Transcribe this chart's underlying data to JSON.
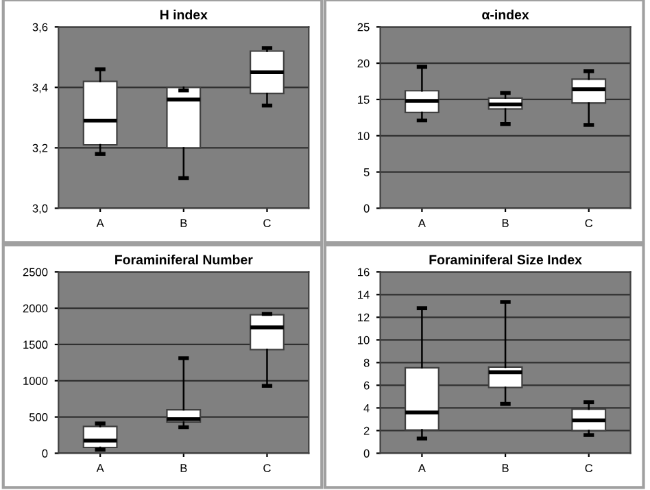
{
  "chart_data": [
    {
      "type": "box",
      "title": "H index",
      "categories": [
        "A",
        "B",
        "C"
      ],
      "ylim": [
        3.0,
        3.6
      ],
      "yticks": [
        {
          "value": 3.0,
          "label": "3,0"
        },
        {
          "value": 3.2,
          "label": "3,2"
        },
        {
          "value": 3.4,
          "label": "3,4"
        },
        {
          "value": 3.6,
          "label": "3,6"
        }
      ],
      "grid": "y",
      "boxes": [
        {
          "low": 3.18,
          "q1": 3.21,
          "median": 3.29,
          "q3": 3.42,
          "high": 3.46
        },
        {
          "low": 3.1,
          "q1": 3.2,
          "median": 3.36,
          "q3": 3.4,
          "high": 3.39
        },
        {
          "low": 3.34,
          "q1": 3.38,
          "median": 3.45,
          "q3": 3.52,
          "high": 3.53
        }
      ]
    },
    {
      "type": "box",
      "title": "α-index",
      "categories": [
        "A",
        "B",
        "C"
      ],
      "ylim": [
        0,
        25
      ],
      "yticks": [
        0,
        5,
        10,
        15,
        20,
        25
      ],
      "grid": "y",
      "boxes": [
        {
          "low": 12.1,
          "q1": 13.2,
          "median": 14.8,
          "q3": 16.2,
          "high": 19.5
        },
        {
          "low": 11.6,
          "q1": 13.7,
          "median": 14.3,
          "q3": 15.2,
          "high": 15.9
        },
        {
          "low": 11.5,
          "q1": 14.5,
          "median": 16.4,
          "q3": 17.8,
          "high": 18.9
        }
      ]
    },
    {
      "type": "box",
      "title": "Foraminiferal Number",
      "categories": [
        "A",
        "B",
        "C"
      ],
      "ylim": [
        0,
        2500
      ],
      "yticks": [
        0,
        500,
        1000,
        1500,
        2000,
        2500
      ],
      "grid": "y",
      "boxes": [
        {
          "low": 50,
          "q1": 80,
          "median": 175,
          "q3": 370,
          "high": 410
        },
        {
          "low": 360,
          "q1": 430,
          "median": 470,
          "q3": 600,
          "high": 1310
        },
        {
          "low": 930,
          "q1": 1430,
          "median": 1735,
          "q3": 1910,
          "high": 1920
        }
      ]
    },
    {
      "type": "box",
      "title": "Foraminiferal Size Index",
      "categories": [
        "A",
        "B",
        "C"
      ],
      "ylim": [
        0,
        16
      ],
      "yticks": [
        0,
        2,
        4,
        6,
        8,
        10,
        12,
        14,
        16
      ],
      "grid": "y",
      "boxes": [
        {
          "low": 1.3,
          "q1": 2.05,
          "median": 3.6,
          "q3": 7.55,
          "high": 12.8
        },
        {
          "low": 4.35,
          "q1": 5.8,
          "median": 7.15,
          "q3": 7.6,
          "high": 13.35
        },
        {
          "low": 1.6,
          "q1": 2.0,
          "median": 2.9,
          "q3": 3.9,
          "high": 4.5
        }
      ]
    }
  ]
}
